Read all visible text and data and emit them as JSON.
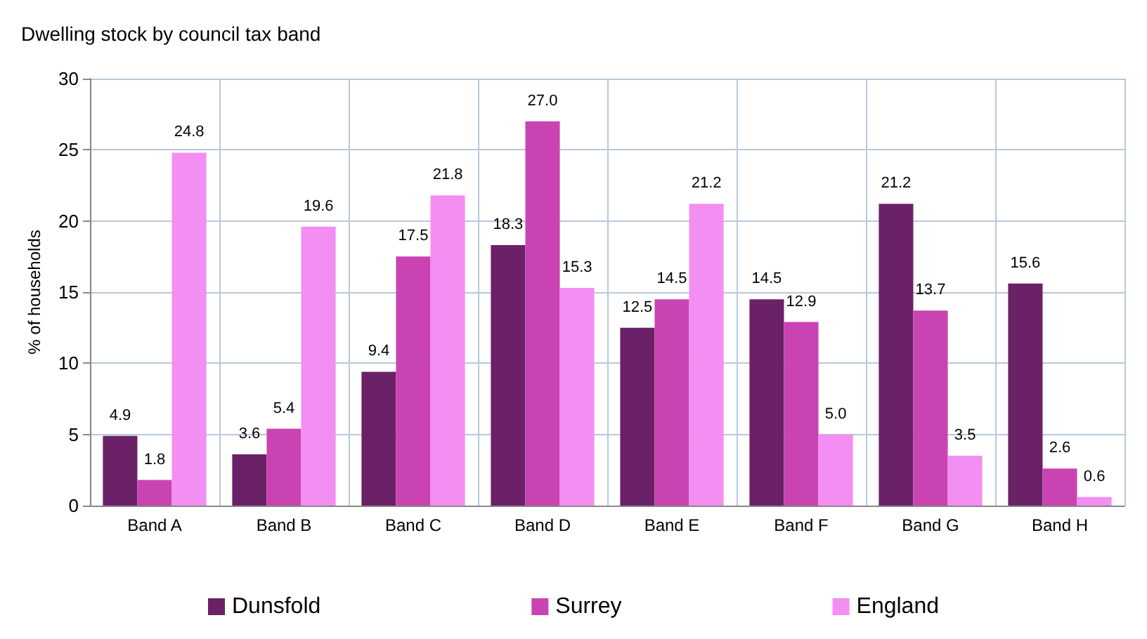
{
  "chart_data": {
    "type": "bar",
    "title": "Dwelling stock by council tax band",
    "ylabel": "% of households",
    "categories": [
      "Band A",
      "Band B",
      "Band C",
      "Band D",
      "Band E",
      "Band F",
      "Band G",
      "Band H"
    ],
    "series": [
      {
        "name": "Dunsfold",
        "color": "#6b2167",
        "values": [
          4.9,
          3.6,
          9.4,
          18.3,
          12.5,
          14.5,
          21.2,
          15.6
        ],
        "value_labels": [
          "4.9",
          "3.6",
          "9.4",
          "18.3",
          "12.5",
          "14.5",
          "21.2",
          "15.6"
        ]
      },
      {
        "name": "Surrey",
        "color": "#c944b2",
        "values": [
          1.8,
          5.4,
          17.5,
          27.0,
          14.5,
          12.9,
          13.7,
          2.6
        ],
        "value_labels": [
          "1.8",
          "5.4",
          "17.5",
          "27.0",
          "14.5",
          "12.9",
          "13.7",
          "2.6"
        ]
      },
      {
        "name": "England",
        "color": "#f38ef2",
        "values": [
          24.8,
          19.6,
          21.8,
          15.3,
          21.2,
          5.0,
          3.5,
          0.6
        ],
        "value_labels": [
          "24.8",
          "19.6",
          "21.8",
          "15.3",
          "21.2",
          "5.0",
          "3.5",
          "0.6"
        ]
      }
    ],
    "ylim": [
      0,
      30
    ],
    "yticks": [
      0,
      5,
      10,
      15,
      20,
      25,
      30
    ],
    "grid": true,
    "legend": "bottom"
  }
}
